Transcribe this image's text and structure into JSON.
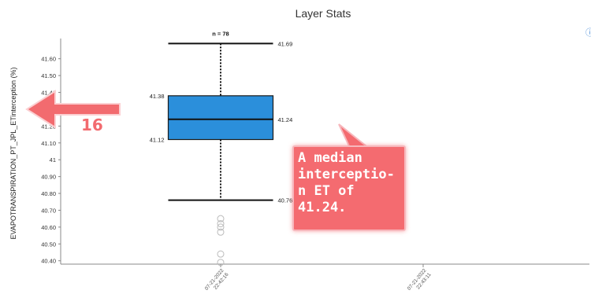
{
  "header": {
    "title": "Layer Stats",
    "info_icon": "info-icon"
  },
  "annotation": {
    "step_number": "16",
    "callout_text": "A median\ninterceptio-\nn ET of\n41.24.",
    "arrow_color": "#f26b6f",
    "callout_color": "#f46b70"
  },
  "chart_data": {
    "type": "boxplot",
    "title": "Layer Stats",
    "ylabel": "EVAPOTRANSPIRATION_PT_JPL_ETinterception (%)",
    "ylim": [
      40.38,
      41.72
    ],
    "yticks": [
      "41.60",
      "41.50",
      "41.40",
      "41.30",
      "41.20",
      "41.10",
      "41",
      "40.90",
      "40.80",
      "40.70",
      "40.60",
      "40.50",
      "40.40"
    ],
    "xtick_labels": [
      "07-21-2022\n22:42:16",
      "07-21-2022\n22:43:11"
    ],
    "box": {
      "n_label": "n = 78",
      "whisker_high": 41.69,
      "q3": 41.38,
      "median": 41.24,
      "q1": 41.12,
      "whisker_low": 40.76,
      "labels": {
        "whisker_high": "41.69",
        "q3": "41.38",
        "median": "41.24",
        "q1": "41.12",
        "whisker_low": "40.76"
      },
      "outliers": [
        40.65,
        40.62,
        40.6,
        40.57,
        40.44,
        40.39
      ],
      "color": "#2b8fdb"
    }
  }
}
